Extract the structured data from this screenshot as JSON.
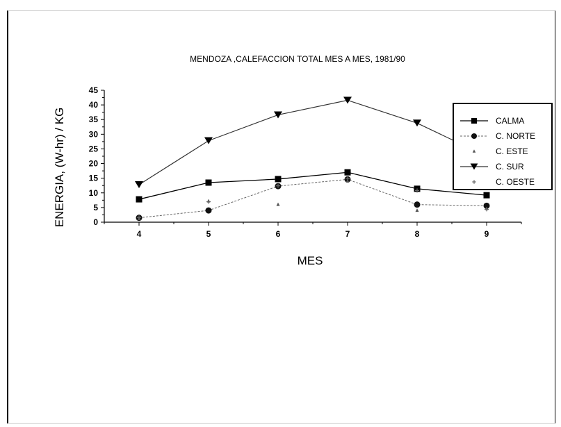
{
  "chart_data": {
    "type": "line",
    "title": "MENDOZA ,CALEFACCION TOTAL MES A MES, 1981/90",
    "xlabel": "MES",
    "ylabel": "ENERGIA, (W-hr) / KG",
    "x": [
      4,
      5,
      6,
      7,
      8,
      9
    ],
    "xlim": [
      3.5,
      9.5
    ],
    "ylim": [
      0,
      45
    ],
    "x_ticks": [
      "4",
      "5",
      "6",
      "7",
      "8",
      "9"
    ],
    "y_ticks": [
      "0",
      "5",
      "10",
      "15",
      "20",
      "25",
      "30",
      "35",
      "40",
      "45"
    ],
    "legend_position": "top-right",
    "grid": false,
    "series": [
      {
        "name": "CALMA",
        "marker": "square",
        "values": [
          7.8,
          13.5,
          14.7,
          17.0,
          11.4,
          9.2
        ]
      },
      {
        "name": "C. NORTE",
        "marker": "circle",
        "values": [
          1.5,
          4.0,
          12.3,
          14.6,
          6.0,
          5.6
        ]
      },
      {
        "name": "C. ESTE",
        "marker": "triangle",
        "values": [
          1.2,
          7.2,
          6.0,
          14.0,
          4.0,
          4.6
        ]
      },
      {
        "name": "C. SUR",
        "marker": "triangle-down",
        "values": [
          12.8,
          27.8,
          36.6,
          41.6,
          33.8,
          22.5
        ]
      },
      {
        "name": "C. OESTE",
        "marker": "plus",
        "values": [
          1.6,
          7.0,
          12.4,
          14.8,
          10.8,
          4.4
        ]
      }
    ]
  }
}
